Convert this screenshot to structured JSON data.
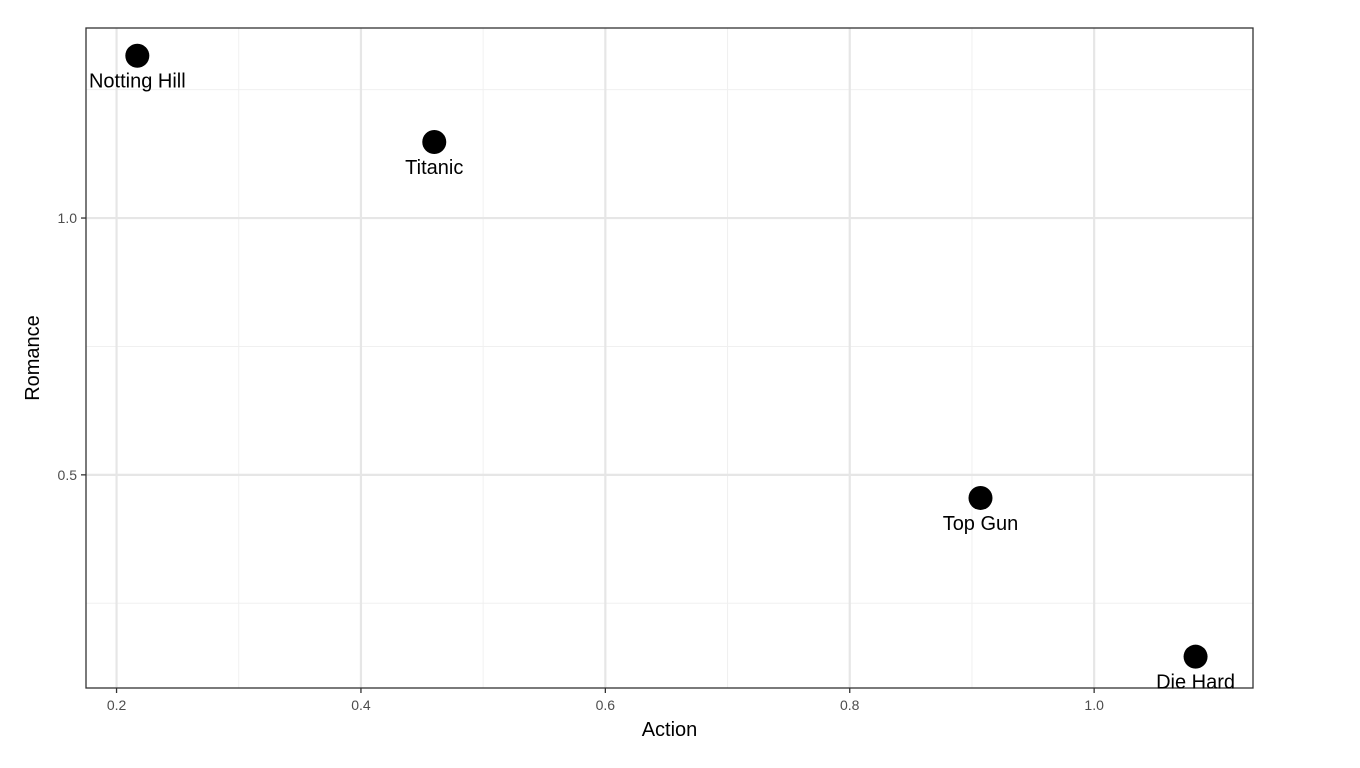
{
  "chart_data": {
    "type": "scatter",
    "xlabel": "Action",
    "ylabel": "Romance",
    "xlim": [
      0.175,
      1.13
    ],
    "ylim": [
      0.085,
      1.37
    ],
    "x_ticks": [
      0.2,
      0.4,
      0.6,
      0.8,
      1.0
    ],
    "x_tick_labels": [
      "0.2",
      "0.4",
      "0.6",
      "0.8",
      "1.0"
    ],
    "y_ticks": [
      0.5,
      1.0
    ],
    "y_tick_labels": [
      "0.5",
      "1.0"
    ],
    "grid": true,
    "legend": "none",
    "point_color": "#000000",
    "points": [
      {
        "label": "Notting Hill",
        "x": 0.217,
        "y": 1.316
      },
      {
        "label": "Titanic",
        "x": 0.46,
        "y": 1.148
      },
      {
        "label": "Top Gun",
        "x": 0.907,
        "y": 0.455
      },
      {
        "label": "Die Hard",
        "x": 1.083,
        "y": 0.146
      }
    ]
  }
}
